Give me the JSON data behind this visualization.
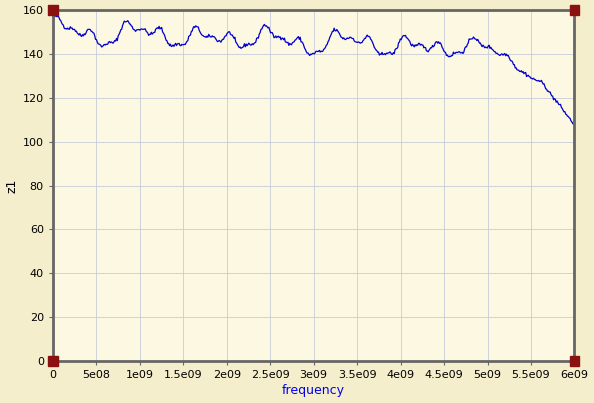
{
  "title": "",
  "xlabel": "frequency",
  "ylabel": "z1",
  "xlabel_color": "#0000ee",
  "ylabel_color": "#000000",
  "xlim": [
    0,
    6000000000.0
  ],
  "ylim": [
    0,
    160
  ],
  "yticks": [
    0,
    20,
    40,
    60,
    80,
    100,
    120,
    140,
    160
  ],
  "xtick_labels": [
    "0",
    "5e08",
    "1e09",
    "1.5e09",
    "2e09",
    "2.5e09",
    "3e09",
    "3.5e09",
    "4e09",
    "4.5e09",
    "5e09",
    "5.5e09",
    "6e09"
  ],
  "xtick_values": [
    0,
    500000000.0,
    1000000000.0,
    1500000000.0,
    2000000000.0,
    2500000000.0,
    3000000000.0,
    3500000000.0,
    4000000000.0,
    4500000000.0,
    5000000000.0,
    5500000000.0,
    6000000000.0
  ],
  "line_color": "#0000cc",
  "bg_color": "#fdf8e1",
  "outer_bg_color": "#f5eecc",
  "border_color": "#666666",
  "corner_color": "#8b1010",
  "grid_color": "#c8ccd8",
  "figsize": [
    5.94,
    4.03
  ],
  "dpi": 100,
  "seed": 42
}
